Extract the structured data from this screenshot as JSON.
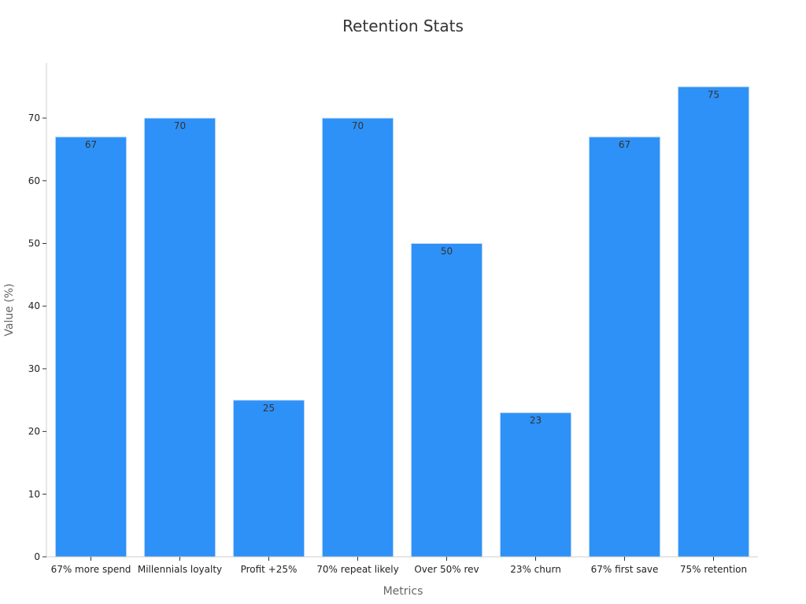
{
  "chart_data": {
    "type": "bar",
    "title": "Retention Stats",
    "xlabel": "Metrics",
    "ylabel": "Value (%)",
    "categories": [
      "67% more spend",
      "Millennials loyalty",
      "Profit +25%",
      "70% repeat likely",
      "Over 50% rev",
      "23% churn",
      "67% first save",
      "75% retention"
    ],
    "values": [
      67,
      70,
      25,
      70,
      50,
      23,
      67,
      75
    ],
    "ylim": [
      0,
      79
    ],
    "yticks": [
      0,
      10,
      20,
      30,
      40,
      50,
      60,
      70
    ],
    "grid": false,
    "legend": "none",
    "bar_color": "#2e91f7",
    "bar_edge_color": "#d6e6f7"
  }
}
